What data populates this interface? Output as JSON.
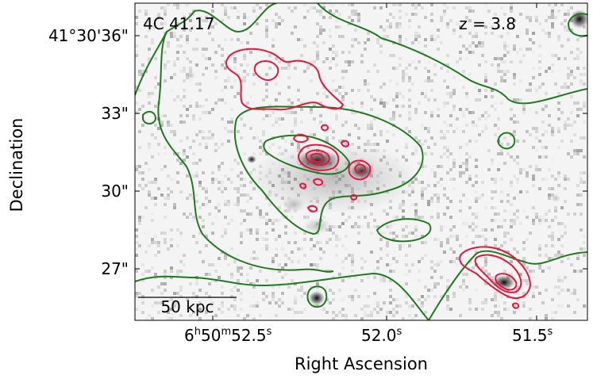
{
  "figure": {
    "object_label": "4C 41.17",
    "redshift_label": "z = 3.8",
    "xlabel": "Right Ascension",
    "ylabel": "Declination",
    "x_ticks": [
      {
        "h": "6",
        "m": "50",
        "s": "52.5",
        "value": 52.5
      },
      {
        "s": "52.0",
        "value": 52.0
      },
      {
        "s": "51.5",
        "value": 51.5
      }
    ],
    "y_ticks": [
      {
        "label": "41°30'36\"",
        "value": 36
      },
      {
        "label": "33\"",
        "value": 33
      },
      {
        "label": "30\"",
        "value": 30
      },
      {
        "label": "27\"",
        "value": 27
      }
    ],
    "scalebar_label": "50 kpc",
    "colors": {
      "green_contour": "#1f7a1f",
      "red_contour": "#e8143c",
      "frame": "#000000"
    }
  }
}
